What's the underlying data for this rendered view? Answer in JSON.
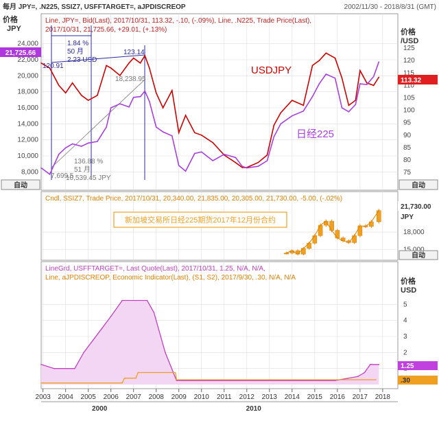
{
  "header": {
    "left": "每月 JPY=, .N225, SSIZ7, USFFTARGET=, aJPDISCREOP",
    "right": "2002/11/30 - 2018/8/31 (GMT)"
  },
  "panel1": {
    "left_unit_top": "价格",
    "left_unit_bottom": "JPY",
    "right_unit_top": "价格",
    "right_unit_bottom": "/USD",
    "legend_line1": "Line, JPY=, Bid(Last), 2017/10/31, 113.32, -.10, (-.09%), Line, .N225, Trade Price(Last),",
    "legend_line2": "2017/10/31, 21,725.66, +29.01, (+.13%)",
    "left_ticks": [
      "24,000",
      "22,000",
      "20,000",
      "18,000",
      "16,000",
      "14,000",
      "12,000",
      "10,000",
      "8,000"
    ],
    "right_ticks": [
      "125",
      "120",
      "115",
      "110",
      "105",
      "100",
      "95",
      "90",
      "85",
      "80",
      "75"
    ],
    "left_badge": "21,725.66",
    "right_badge": "113.32",
    "auto_left": "自动",
    "auto_right": "自动",
    "label_usdjpy": "USDJPY",
    "label_nikkei": "日经225",
    "ann_low_usd": "120.91",
    "ann_high_usd": "123.14",
    "ann_pct": "1.84 %",
    "ann_months": "50 月",
    "ann_diff": "2.23 USD",
    "ann_nk_peak": "18,238.95",
    "ann_nk_low": "7,699.5",
    "ann_pct2": "136.88 %",
    "ann_months2": "51 月",
    "ann_diff2": "10,539.45 JPY"
  },
  "panel2": {
    "legend": "Cndl, SSIZ7, Trade Price, 2017/10/31, 20,340.00, 21,835.00, 20,305.00, 21,730.00, -5.00, (-.02%)",
    "note": "新加坡交易所日经225期货2017年12月份合约",
    "right_badge": "21,730.00",
    "right_unit": "JPY",
    "ticks": [
      "18,000",
      "15,000"
    ],
    "auto": "自动"
  },
  "panel3": {
    "legend1": "LineGrd, USFFTARGET=, Last Quote(Last), 2017/10/31, 1.25, N/A, N/A,",
    "legend2": "Line, aJPDISCREOP, Economic Indicator(Last), (S1, S2), 2017/9/30, .30, N/A, N/A",
    "right_unit_top": "价格",
    "right_unit_bottom": "USD",
    "ticks": [
      "5",
      "4",
      "3",
      "2",
      "1"
    ],
    "badge_ff": "1.25",
    "badge_jp": ".30"
  },
  "xaxis": {
    "years": [
      "2003",
      "2004",
      "2005",
      "2006",
      "2007",
      "2008",
      "2009",
      "2010",
      "2011",
      "2012",
      "2013",
      "2014",
      "2015",
      "2016",
      "2017",
      "2018"
    ],
    "decades": [
      "2000",
      "2010"
    ]
  },
  "colors": {
    "usdjpy": "#d00000",
    "nikkei": "#a83fe0",
    "fedfunds": "#c040c0",
    "jpdisc": "#f0a020",
    "annot": "#2a2aa0",
    "grid": "#dddddd"
  },
  "chart_data": [
    {
      "type": "line",
      "series": [
        {
          "name": "JPY=",
          "axis": "right",
          "x": [
            2002.92,
            2003.3,
            2003.7,
            2004.0,
            2004.3,
            2004.7,
            2005.0,
            2005.4,
            2005.8,
            2006.0,
            2006.4,
            2006.8,
            2007.0,
            2007.3,
            2007.5,
            2007.7,
            2008.0,
            2008.3,
            2008.7,
            2009.0,
            2009.3,
            2009.7,
            2010.0,
            2010.5,
            2011.0,
            2011.5,
            2011.8,
            2012.0,
            2012.5,
            2012.9,
            2013.2,
            2013.5,
            2014.0,
            2014.5,
            2014.9,
            2015.2,
            2015.5,
            2015.9,
            2016.2,
            2016.5,
            2016.8,
            2017.0,
            2017.3,
            2017.6,
            2017.83
          ],
          "values": [
            119,
            117,
            110,
            107,
            111,
            106,
            104,
            106,
            118,
            117,
            114,
            119,
            121,
            119,
            122,
            117,
            107,
            101,
            108,
            91,
            98,
            91,
            90,
            87,
            82,
            79,
            77,
            77,
            79,
            82,
            94,
            99,
            104,
            102,
            118,
            120,
            123,
            121,
            113,
            102,
            104,
            116,
            111,
            110,
            113.32
          ]
        },
        {
          "name": ".N225",
          "axis": "left",
          "x": [
            2002.92,
            2003.3,
            2003.7,
            2004.0,
            2004.3,
            2004.7,
            2005.0,
            2005.4,
            2005.8,
            2006.0,
            2006.4,
            2006.8,
            2007.0,
            2007.3,
            2007.5,
            2007.7,
            2008.0,
            2008.3,
            2008.7,
            2009.0,
            2009.3,
            2009.7,
            2010.0,
            2010.5,
            2011.0,
            2011.5,
            2011.8,
            2012.0,
            2012.5,
            2012.9,
            2013.2,
            2013.5,
            2014.0,
            2014.5,
            2014.9,
            2015.2,
            2015.5,
            2015.9,
            2016.2,
            2016.5,
            2016.8,
            2017.0,
            2017.3,
            2017.6,
            2017.83
          ],
          "values": [
            8500,
            7700,
            10200,
            11000,
            11500,
            11200,
            11600,
            11800,
            13600,
            16000,
            16500,
            16100,
            17300,
            17400,
            18100,
            16800,
            13600,
            13000,
            12500,
            8800,
            8100,
            10300,
            10500,
            9400,
            10200,
            9800,
            8700,
            8500,
            8700,
            9400,
            12400,
            14000,
            15000,
            15600,
            17400,
            19000,
            20200,
            19700,
            16000,
            15500,
            16400,
            19000,
            18900,
            19900,
            21725.66
          ]
        }
      ],
      "left_ylim": [
        7000,
        25000
      ],
      "right_ylim": [
        72,
        130
      ],
      "xlim": [
        2002.92,
        2018.67
      ]
    },
    {
      "type": "candlestick",
      "name": "SSIZ7",
      "x": [
        2013.75,
        2014.0,
        2014.25,
        2014.5,
        2014.75,
        2015.0,
        2015.25,
        2015.5,
        2015.75,
        2016.0,
        2016.25,
        2016.5,
        2016.75,
        2017.0,
        2017.25,
        2017.5,
        2017.83
      ],
      "values": [
        14400,
        14800,
        14200,
        15200,
        16100,
        17400,
        19200,
        19900,
        18300,
        17000,
        16500,
        16200,
        17400,
        19100,
        19000,
        19800,
        21730
      ],
      "ylim": [
        13500,
        23000
      ]
    },
    {
      "type": "line",
      "series": [
        {
          "name": "USFFTARGET=",
          "x": [
            2002.92,
            2003.5,
            2004.4,
            2004.8,
            2005.2,
            2005.6,
            2006.0,
            2006.5,
            2007.6,
            2007.9,
            2008.2,
            2008.4,
            2008.9,
            2015.9,
            2016.9,
            2017.2,
            2017.45,
            2017.83
          ],
          "values": [
            1.25,
            1.0,
            1.0,
            2.0,
            2.75,
            3.5,
            4.25,
            5.25,
            5.25,
            4.5,
            3.0,
            2.0,
            0.25,
            0.25,
            0.5,
            0.75,
            1.25,
            1.25
          ]
        },
        {
          "name": "aJPDISCREOP",
          "x": [
            2002.92,
            2006.5,
            2006.6,
            2007.1,
            2007.2,
            2008.85,
            2008.9,
            2017.7
          ],
          "values": [
            0.1,
            0.1,
            0.4,
            0.4,
            0.75,
            0.75,
            0.3,
            0.3
          ]
        }
      ],
      "ylim": [
        0,
        6
      ]
    }
  ]
}
